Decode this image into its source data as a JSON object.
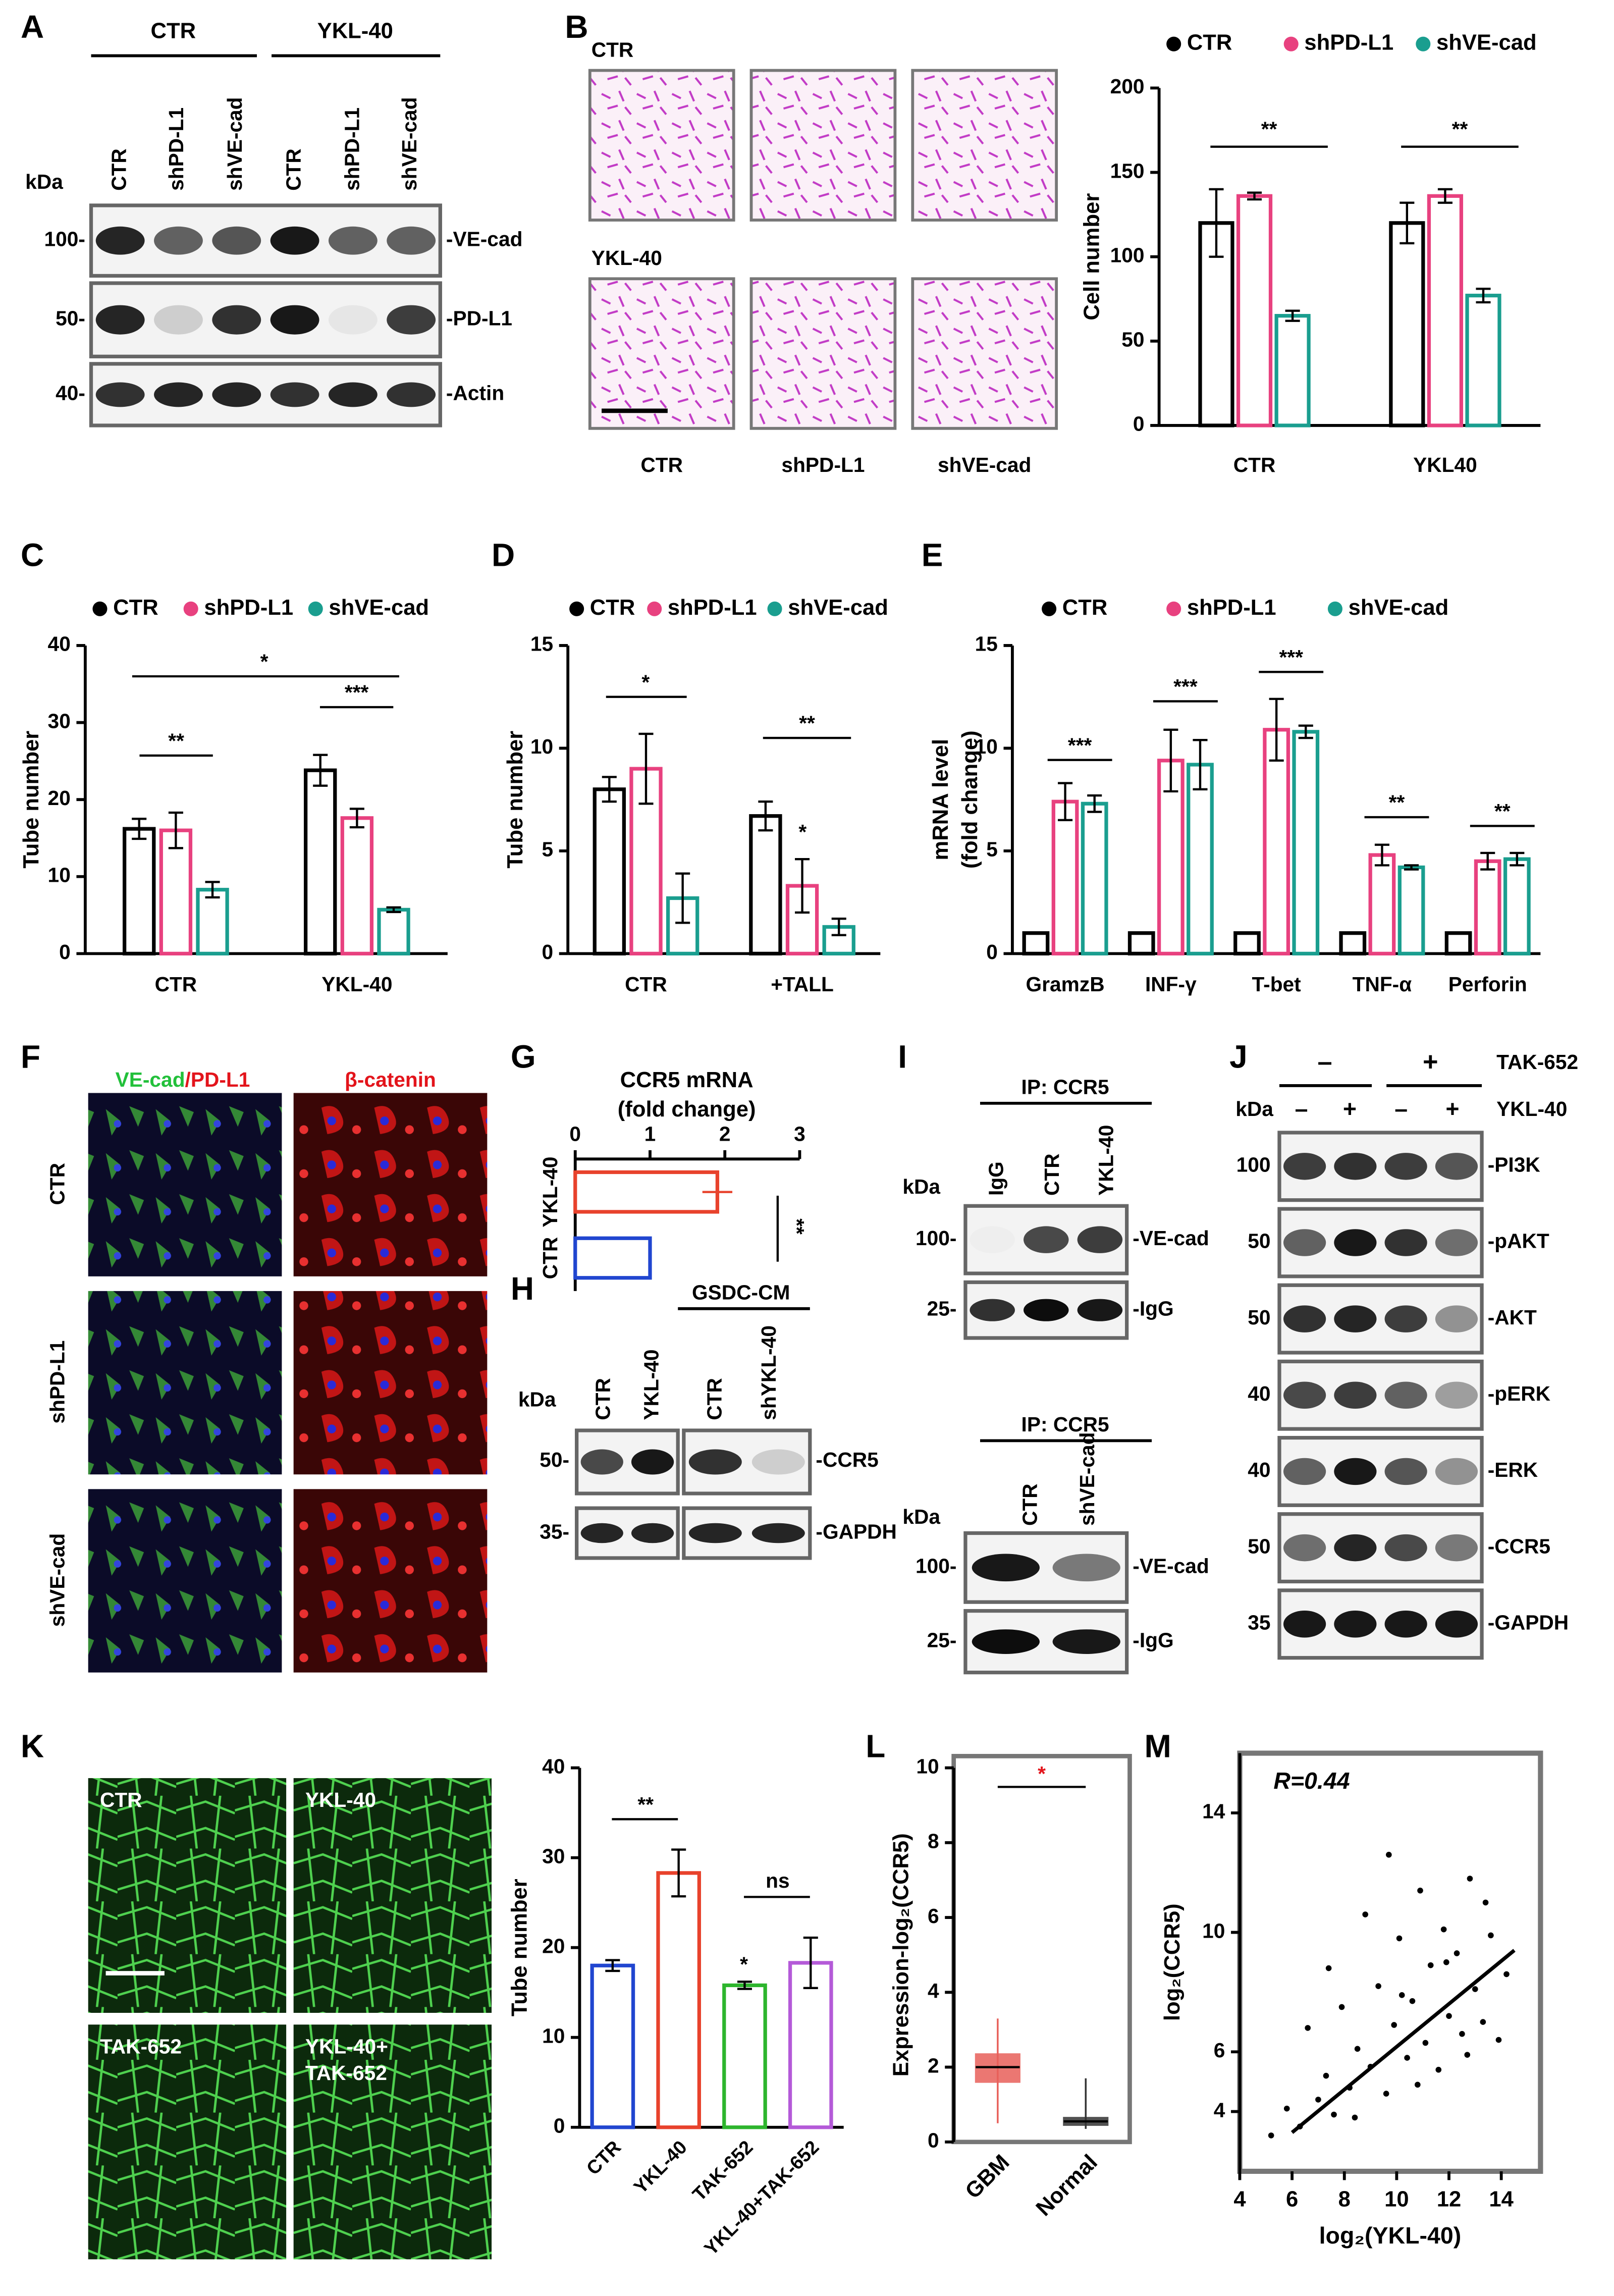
{
  "panel_labels": [
    "A",
    "B",
    "C",
    "D",
    "E",
    "F",
    "G",
    "H",
    "I",
    "J",
    "K",
    "L",
    "M"
  ],
  "panel_A": {
    "groups": [
      "CTR",
      "YKL-40"
    ],
    "kda": "kDa",
    "lanes": [
      "CTR",
      "shPD-L1",
      "shVE-cad",
      "CTR",
      "shPD-L1",
      "shVE-cad"
    ],
    "markers": [
      "100-",
      "50-",
      "40-"
    ],
    "bands": [
      "-VE-cad",
      "-PD-L1",
      "-Actin"
    ]
  },
  "panel_B_images": {
    "rows": [
      "CTR",
      "YKL-40"
    ],
    "columns": [
      "CTR",
      "shPD-L1",
      "shVE-cad"
    ]
  },
  "panel_F": {
    "header_1a": "VE-cad",
    "header_1b": "/PD-L1",
    "header_2": "β-catenin",
    "rows": [
      "CTR",
      "shPD-L1",
      "shVE-cad"
    ]
  },
  "panel_H": {
    "group": "GSDC-CM",
    "kda": "kDa",
    "lanes": [
      "CTR",
      "YKL-40",
      "CTR",
      "shYKL-40"
    ],
    "markers": [
      "50-",
      "35-"
    ],
    "bands": [
      "-CCR5",
      "-GAPDH"
    ]
  },
  "panel_I": {
    "top": {
      "title": "IP: CCR5",
      "kda": "kDa",
      "lanes": [
        "IgG",
        "CTR",
        "YKL-40"
      ],
      "markers": [
        "100-",
        "25-"
      ],
      "bands": [
        "-VE-cad",
        "-IgG"
      ]
    },
    "bottom": {
      "title": "IP: CCR5",
      "kda": "kDa",
      "lanes": [
        "CTR",
        "shVE-cad"
      ],
      "markers": [
        "100-",
        "25-"
      ],
      "bands": [
        "-VE-cad",
        "-IgG"
      ]
    }
  },
  "panel_J": {
    "treatment": "TAK-652",
    "treatment_signs": [
      "–",
      "+"
    ],
    "factor": "YKL-40",
    "factor_signs": [
      "–",
      "+",
      "–",
      "+"
    ],
    "kda": "kDa",
    "markers": [
      "100",
      "50",
      "50",
      "40",
      "40",
      "50",
      "35"
    ],
    "bands": [
      "-PI3K",
      "-pAKT",
      "-AKT",
      "-pERK",
      "-ERK",
      "-CCR5",
      "-GAPDH"
    ]
  },
  "panel_K_images": {
    "labels": [
      "CTR",
      "YKL-40",
      "TAK-652",
      "YKL-40+",
      "TAK-652"
    ]
  },
  "chart_data": [
    {
      "type": "bar",
      "ylabel": "Cell number",
      "categories": [
        "CTR",
        "YKL40"
      ],
      "ylim": [
        0,
        200
      ],
      "yticks": [
        0,
        50,
        100,
        150,
        200
      ],
      "legend": "top",
      "series": [
        {
          "name": "CTR",
          "color": "#000000",
          "values": [
            120,
            120
          ],
          "errors": [
            20,
            12
          ]
        },
        {
          "name": "shPD-L1",
          "color": "#e8417f",
          "values": [
            136,
            136
          ],
          "errors": [
            2,
            4
          ]
        },
        {
          "name": "shVE-cad",
          "color": "#1a9e8f",
          "values": [
            65,
            77
          ],
          "errors": [
            3,
            4
          ]
        }
      ],
      "annotations": [
        "**",
        "**"
      ]
    },
    {
      "type": "bar",
      "ylabel": "Tube number",
      "categories": [
        "CTR",
        "YKL-40"
      ],
      "ylim": [
        0,
        40
      ],
      "yticks": [
        0,
        10,
        20,
        30,
        40
      ],
      "legend": "top",
      "series": [
        {
          "name": "CTR",
          "color": "#000000",
          "values": [
            16.2,
            23.8
          ],
          "errors": [
            1.3,
            2.0
          ]
        },
        {
          "name": "shPD-L1",
          "color": "#e8417f",
          "values": [
            16,
            17.6
          ],
          "errors": [
            2.3,
            1.2
          ]
        },
        {
          "name": "shVE-cad",
          "color": "#1a9e8f",
          "values": [
            8.3,
            5.7
          ],
          "errors": [
            1,
            0.3
          ]
        }
      ],
      "annotations": [
        "*",
        "**",
        "***"
      ]
    },
    {
      "type": "bar",
      "ylabel": "Tube number",
      "categories": [
        "CTR",
        "+TALL"
      ],
      "ylim": [
        0,
        15
      ],
      "yticks": [
        0,
        5,
        10,
        15
      ],
      "legend": "top",
      "series": [
        {
          "name": "CTR",
          "color": "#000000",
          "values": [
            8,
            6.7
          ],
          "errors": [
            0.6,
            0.7
          ]
        },
        {
          "name": "shPD-L1",
          "color": "#e8417f",
          "values": [
            9,
            3.3
          ],
          "errors": [
            1.7,
            1.3
          ]
        },
        {
          "name": "shVE-cad",
          "color": "#1a9e8f",
          "values": [
            2.7,
            1.3
          ],
          "errors": [
            1.2,
            0.4
          ]
        }
      ],
      "annotations": [
        "*",
        "**",
        "*"
      ]
    },
    {
      "type": "bar",
      "ylabel": [
        "mRNA level",
        "(fold change)"
      ],
      "categories": [
        "GramzB",
        "INF-γ",
        "T-bet",
        "TNF-α",
        "Perforin"
      ],
      "ylim": [
        0,
        15
      ],
      "yticks": [
        0,
        5,
        10,
        15
      ],
      "legend": "top",
      "series": [
        {
          "name": "CTR",
          "color": "#000000",
          "values": [
            1,
            1,
            1,
            1,
            1
          ],
          "errors": [
            0,
            0,
            0,
            0,
            0
          ]
        },
        {
          "name": "shPD-L1",
          "color": "#e8417f",
          "values": [
            7.4,
            9.4,
            10.9,
            4.8,
            4.5
          ],
          "errors": [
            0.9,
            1.5,
            1.5,
            0.5,
            0.4
          ]
        },
        {
          "name": "shVE-cad",
          "color": "#1a9e8f",
          "values": [
            7.3,
            9.2,
            10.8,
            4.2,
            4.6
          ],
          "errors": [
            0.4,
            1.2,
            0.3,
            0.1,
            0.3
          ]
        }
      ],
      "annotations": [
        "***",
        "***",
        "***",
        "**",
        "**"
      ]
    },
    {
      "type": "bar",
      "orientation": "horizontal",
      "title": "CCR5 mRNA",
      "subtitle": "(fold change)",
      "categories": [
        "YKL-40",
        "CTR"
      ],
      "values": [
        1.9,
        1.0
      ],
      "errors": [
        0.2,
        0
      ],
      "colors": [
        "#e8422c",
        "#2146d0"
      ],
      "xlim": [
        0,
        3
      ],
      "xticks": [
        0,
        1,
        2,
        3
      ],
      "annotations": [
        "**"
      ]
    },
    {
      "type": "bar",
      "ylabel": "Tube number",
      "categories": [
        "CTR",
        "YKL-40",
        "TAK-652",
        "YKL-40+TAK-652"
      ],
      "values": [
        18,
        28.3,
        15.8,
        18.3
      ],
      "errors": [
        0.6,
        2.6,
        0.4,
        2.8
      ],
      "colors": [
        "#2146d0",
        "#e8422c",
        "#2db52d",
        "#b45ad8"
      ],
      "ylim": [
        0,
        40
      ],
      "yticks": [
        0,
        10,
        20,
        30,
        40
      ],
      "annotations": [
        "**",
        "ns",
        "*"
      ]
    },
    {
      "type": "box",
      "ylabel": "Expression-log₂(CCR5)",
      "categories": [
        "GBM",
        "Normal"
      ],
      "boxes": [
        {
          "min": 0.5,
          "q1": 1.6,
          "median": 2.0,
          "q3": 2.35,
          "max": 3.3
        },
        {
          "min": 0.35,
          "q1": 0.45,
          "median": 0.55,
          "q3": 0.65,
          "max": 1.7
        }
      ],
      "colors": [
        "#e8605a",
        "#333333"
      ],
      "ylim": [
        0,
        10
      ],
      "yticks": [
        0,
        2,
        4,
        6,
        8,
        10
      ],
      "annotations": [
        "*"
      ]
    },
    {
      "type": "scatter",
      "xlabel": "log₂(YKL-40)",
      "ylabel": "log₂(CCR5)",
      "xlim": [
        4,
        15.5
      ],
      "xticks": [
        4,
        6,
        8,
        10,
        12,
        14
      ],
      "ylim": [
        2,
        16
      ],
      "yticks": [
        4,
        6,
        10,
        14
      ],
      "x": [
        5.2,
        5.8,
        6.3,
        6.6,
        7.0,
        7.3,
        7.6,
        7.9,
        8.2,
        8.5,
        8.8,
        9.0,
        9.3,
        9.6,
        9.9,
        10.1,
        10.4,
        10.6,
        10.9,
        11.1,
        11.3,
        11.6,
        11.8,
        12.0,
        12.3,
        12.5,
        12.8,
        13.0,
        13.3,
        13.6,
        13.9,
        14.2,
        8.4,
        9.7,
        10.8,
        11.9,
        12.7,
        7.4,
        13.4,
        10.2
      ],
      "y": [
        3.2,
        4.1,
        3.5,
        6.8,
        4.4,
        5.2,
        3.9,
        7.5,
        4.8,
        6.1,
        10.6,
        5.5,
        8.2,
        4.6,
        6.9,
        9.8,
        5.8,
        7.7,
        11.4,
        6.3,
        8.9,
        5.4,
        10.1,
        7.2,
        9.3,
        6.6,
        11.8,
        8.1,
        7.0,
        9.9,
        6.4,
        8.6,
        3.8,
        12.6,
        4.9,
        9.0,
        5.9,
        8.8,
        11.0,
        7.9
      ],
      "fit": {
        "x": [
          6,
          14.5
        ],
        "y": [
          3.3,
          9.4
        ]
      },
      "annotations": [
        "R=0.44"
      ]
    }
  ]
}
